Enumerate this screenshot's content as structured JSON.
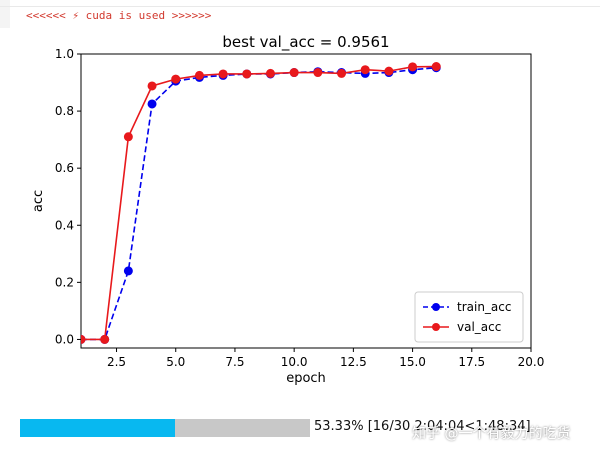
{
  "log": {
    "text": "<<<<<< ⚡ cuda is used >>>>>>"
  },
  "chart_data": {
    "type": "line",
    "title": "best val_acc = 0.9561",
    "xlabel": "epoch",
    "ylabel": "acc",
    "xlim": [
      1,
      20
    ],
    "ylim": [
      -0.03,
      1.0
    ],
    "x_ticks": [
      "2.5",
      "5.0",
      "7.5",
      "10.0",
      "12.5",
      "15.0",
      "17.5",
      "20.0"
    ],
    "y_ticks": [
      "0.0",
      "0.2",
      "0.4",
      "0.6",
      "0.8",
      "1.0"
    ],
    "grid": false,
    "legend_position": "lower-right",
    "x": [
      1,
      2,
      3,
      4,
      5,
      6,
      7,
      8,
      9,
      10,
      11,
      12,
      13,
      14,
      15,
      16
    ],
    "series": [
      {
        "name": "train_acc",
        "color": "#0000ee",
        "line_style": "dashed",
        "marker": "circle",
        "values": [
          0.0,
          0.0,
          0.24,
          0.825,
          0.905,
          0.918,
          0.925,
          0.93,
          0.93,
          0.935,
          0.938,
          0.935,
          0.932,
          0.935,
          0.945,
          0.952
        ]
      },
      {
        "name": "val_acc",
        "color": "#e8191c",
        "line_style": "solid",
        "marker": "circle",
        "values": [
          0.0,
          0.0,
          0.71,
          0.888,
          0.912,
          0.925,
          0.93,
          0.93,
          0.932,
          0.935,
          0.935,
          0.932,
          0.945,
          0.94,
          0.955,
          0.9561
        ]
      }
    ]
  },
  "progress": {
    "percent": 53.33,
    "fill_color": "#08b8f0",
    "text": "53.33% [16/30 2:04:04<1:48:34]"
  },
  "watermark": {
    "text": "知乎 @一个有毅力的吃货"
  }
}
